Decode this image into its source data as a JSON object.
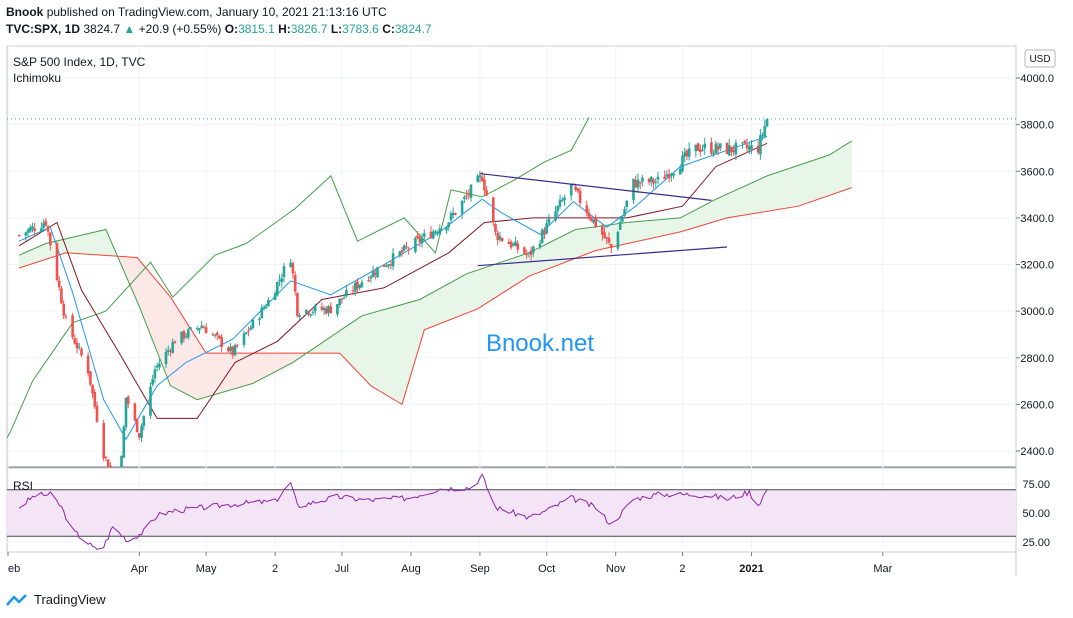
{
  "header": {
    "publisher": "Bnook",
    "published_text": "published on TradingView.com, January 10, 2021 21:13:16 UTC",
    "symbol": "TVC:SPX, 1D",
    "last": "3824.7",
    "change": "+20.9 (+0.55%)",
    "o_label": "O:",
    "o": "3815.1",
    "h_label": "H:",
    "h": "3826.7",
    "l_label": "L:",
    "l": "3783.6",
    "c_label": "C:",
    "c": "3824.7"
  },
  "legend": {
    "title": "S&P 500 Index, 1D, TVC",
    "indicator": "Ichimoku",
    "rsi_label": "RSI"
  },
  "currency_badge": "USD",
  "watermark": "Bnook.net",
  "footer": {
    "brand": "TradingView"
  },
  "colors": {
    "up": "#26a69a",
    "candle_up": "#26a69a",
    "candle_down": "#ef5350",
    "conversion": "#2196f3",
    "base": "#801922",
    "lagging": "#43a047",
    "span_a": "#43a047",
    "span_b": "#f44336",
    "cloud_bull": "#e8f5e9",
    "cloud_bear": "#fde8e8",
    "trendline": "#3a2d8c",
    "rsi_line": "#8e24aa",
    "rsi_band": "#f3e5f5",
    "watermark": "#2196f3"
  },
  "chart_data": [
    {
      "type": "candlestick",
      "title": "S&P 500 Index, 1D, TVC",
      "indicator": "Ichimoku",
      "x_ticks": [
        "eb",
        "Apr",
        "May",
        "2",
        "Jul",
        "Aug",
        "Sep",
        "Oct",
        "Nov",
        "2",
        "2021",
        "Mar"
      ],
      "y_ticks": [
        "4000.0",
        "3800.0",
        "3600.0",
        "3400.0",
        "3200.0",
        "3000.0",
        "2800.0",
        "2600.0",
        "2400.0"
      ],
      "ylim": [
        2330,
        4080
      ],
      "last_price_line": 3824.7,
      "price_path": [
        [
          "2020-02-07",
          3325
        ],
        [
          "2020-02-19",
          3386
        ],
        [
          "2020-02-28",
          2954
        ],
        [
          "2020-03-09",
          2746
        ],
        [
          "2020-03-16",
          2386
        ],
        [
          "2020-03-23",
          2237
        ],
        [
          "2020-03-26",
          2630
        ],
        [
          "2020-04-01",
          2470
        ],
        [
          "2020-04-08",
          2750
        ],
        [
          "2020-04-17",
          2875
        ],
        [
          "2020-04-29",
          2939
        ],
        [
          "2020-05-13",
          2820
        ],
        [
          "2020-05-29",
          3044
        ],
        [
          "2020-06-08",
          3232
        ],
        [
          "2020-06-11",
          3002
        ],
        [
          "2020-06-26",
          3009
        ],
        [
          "2020-07-13",
          3155
        ],
        [
          "2020-07-31",
          3271
        ],
        [
          "2020-08-18",
          3389
        ],
        [
          "2020-09-02",
          3580
        ],
        [
          "2020-09-08",
          3331
        ],
        [
          "2020-09-23",
          3237
        ],
        [
          "2020-10-12",
          3534
        ],
        [
          "2020-10-30",
          3270
        ],
        [
          "2020-11-09",
          3550
        ],
        [
          "2020-11-20",
          3557
        ],
        [
          "2020-12-08",
          3702
        ],
        [
          "2020-12-21",
          3694
        ],
        [
          "2021-01-04",
          3700
        ],
        [
          "2021-01-08",
          3824.7
        ]
      ],
      "ichimoku": {
        "conversion": [
          [
            "2020-02-07",
            3300
          ],
          [
            "2020-02-21",
            3360
          ],
          [
            "2020-03-02",
            3080
          ],
          [
            "2020-03-16",
            2620
          ],
          [
            "2020-03-26",
            2450
          ],
          [
            "2020-04-09",
            2680
          ],
          [
            "2020-04-22",
            2780
          ],
          [
            "2020-05-13",
            2880
          ],
          [
            "2020-06-08",
            3130
          ],
          [
            "2020-06-26",
            3070
          ],
          [
            "2020-07-20",
            3200
          ],
          [
            "2020-08-14",
            3340
          ],
          [
            "2020-09-02",
            3480
          ],
          [
            "2020-09-11",
            3420
          ],
          [
            "2020-09-28",
            3330
          ],
          [
            "2020-10-13",
            3470
          ],
          [
            "2020-10-28",
            3360
          ],
          [
            "2020-11-10",
            3450
          ],
          [
            "2020-11-30",
            3620
          ],
          [
            "2020-12-21",
            3690
          ],
          [
            "2021-01-08",
            3750
          ]
        ],
        "base": [
          [
            "2020-02-07",
            3280
          ],
          [
            "2020-02-24",
            3380
          ],
          [
            "2020-03-06",
            3090
          ],
          [
            "2020-03-23",
            2820
          ],
          [
            "2020-04-09",
            2540
          ],
          [
            "2020-04-27",
            2540
          ],
          [
            "2020-05-14",
            2780
          ],
          [
            "2020-06-02",
            2870
          ],
          [
            "2020-06-22",
            3050
          ],
          [
            "2020-07-20",
            3100
          ],
          [
            "2020-08-18",
            3250
          ],
          [
            "2020-09-03",
            3380
          ],
          [
            "2020-09-25",
            3400
          ],
          [
            "2020-10-21",
            3400
          ],
          [
            "2020-11-06",
            3400
          ],
          [
            "2020-12-01",
            3450
          ],
          [
            "2020-12-16",
            3620
          ],
          [
            "2021-01-08",
            3720
          ]
        ],
        "lagging": [
          [
            "2019-12-30",
            3200
          ],
          [
            "2020-01-09",
            2900
          ],
          [
            "2020-01-16",
            2500
          ],
          [
            "2020-01-23",
            2300
          ],
          [
            "2020-02-03",
            2480
          ],
          [
            "2020-02-13",
            2700
          ],
          [
            "2020-03-02",
            2950
          ],
          [
            "2020-03-17",
            3000
          ],
          [
            "2020-04-06",
            3210
          ],
          [
            "2020-04-16",
            3060
          ],
          [
            "2020-05-05",
            3240
          ],
          [
            "2020-05-19",
            3290
          ],
          [
            "2020-06-10",
            3440
          ],
          [
            "2020-06-26",
            3580
          ],
          [
            "2020-07-08",
            3300
          ],
          [
            "2020-07-29",
            3400
          ],
          [
            "2020-08-12",
            3250
          ],
          [
            "2020-08-19",
            3520
          ],
          [
            "2020-09-02",
            3490
          ],
          [
            "2020-09-16",
            3560
          ],
          [
            "2020-09-30",
            3640
          ],
          [
            "2020-10-12",
            3690
          ],
          [
            "2020-10-20",
            3830
          ]
        ],
        "span_a": [
          [
            "2020-02-07",
            3240
          ],
          [
            "2020-02-19",
            3290
          ],
          [
            "2020-03-17",
            3350
          ],
          [
            "2020-04-01",
            3020
          ],
          [
            "2020-04-15",
            2680
          ],
          [
            "2020-04-27",
            2620
          ],
          [
            "2020-05-22",
            2690
          ],
          [
            "2020-06-09",
            2780
          ],
          [
            "2020-07-10",
            2980
          ],
          [
            "2020-08-05",
            3050
          ],
          [
            "2020-08-26",
            3160
          ],
          [
            "2020-09-23",
            3250
          ],
          [
            "2020-10-14",
            3350
          ],
          [
            "2020-11-06",
            3380
          ],
          [
            "2020-11-30",
            3400
          ],
          [
            "2020-12-16",
            3480
          ],
          [
            "2021-01-08",
            3580
          ],
          [
            "2021-02-05",
            3670
          ],
          [
            "2021-02-15",
            3730
          ]
        ],
        "span_b": [
          [
            "2020-02-07",
            3185
          ],
          [
            "2020-02-28",
            3250
          ],
          [
            "2020-03-31",
            3230
          ],
          [
            "2020-04-15",
            3060
          ],
          [
            "2020-05-01",
            2820
          ],
          [
            "2020-06-30",
            2820
          ],
          [
            "2020-07-14",
            2680
          ],
          [
            "2020-07-28",
            2600
          ],
          [
            "2020-08-07",
            2920
          ],
          [
            "2020-08-31",
            3010
          ],
          [
            "2020-09-23",
            3150
          ],
          [
            "2020-10-23",
            3260
          ],
          [
            "2020-11-30",
            3340
          ],
          [
            "2020-12-21",
            3400
          ],
          [
            "2021-01-22",
            3450
          ],
          [
            "2021-02-15",
            3530
          ]
        ]
      },
      "trendlines": [
        {
          "from": [
            "2020-09-01",
            3590
          ],
          "to": [
            "2020-12-14",
            3475
          ]
        },
        {
          "from": [
            "2020-08-31",
            3195
          ],
          "to": [
            "2020-12-21",
            3275
          ]
        }
      ]
    },
    {
      "type": "line",
      "title": "RSI",
      "y_ticks": [
        "75.00",
        "50.00",
        "25.00"
      ],
      "ylim": [
        18,
        85
      ],
      "band": [
        30,
        70
      ],
      "rsi": [
        [
          "2020-02-07",
          55
        ],
        [
          "2020-02-14",
          65
        ],
        [
          "2020-02-21",
          66
        ],
        [
          "2020-02-26",
          55
        ],
        [
          "2020-03-02",
          35
        ],
        [
          "2020-03-09",
          24
        ],
        [
          "2020-03-12",
          19
        ],
        [
          "2020-03-16",
          21
        ],
        [
          "2020-03-20",
          38
        ],
        [
          "2020-03-27",
          26
        ],
        [
          "2020-04-03",
          34
        ],
        [
          "2020-04-09",
          48
        ],
        [
          "2020-04-17",
          52
        ],
        [
          "2020-05-01",
          55
        ],
        [
          "2020-05-15",
          58
        ],
        [
          "2020-06-01",
          60
        ],
        [
          "2020-06-08",
          76
        ],
        [
          "2020-06-11",
          56
        ],
        [
          "2020-06-29",
          64
        ],
        [
          "2020-07-13",
          61
        ],
        [
          "2020-07-31",
          63
        ],
        [
          "2020-08-14",
          71
        ],
        [
          "2020-08-28",
          72
        ],
        [
          "2020-09-02",
          82
        ],
        [
          "2020-09-08",
          55
        ],
        [
          "2020-09-23",
          46
        ],
        [
          "2020-10-01",
          52
        ],
        [
          "2020-10-12",
          63
        ],
        [
          "2020-10-23",
          55
        ],
        [
          "2020-10-30",
          40
        ],
        [
          "2020-11-09",
          62
        ],
        [
          "2020-11-20",
          66
        ],
        [
          "2020-12-04",
          66
        ],
        [
          "2020-12-14",
          65
        ],
        [
          "2020-12-21",
          62
        ],
        [
          "2020-12-31",
          68
        ],
        [
          "2021-01-04",
          57
        ],
        [
          "2021-01-08",
          70
        ]
      ]
    }
  ]
}
